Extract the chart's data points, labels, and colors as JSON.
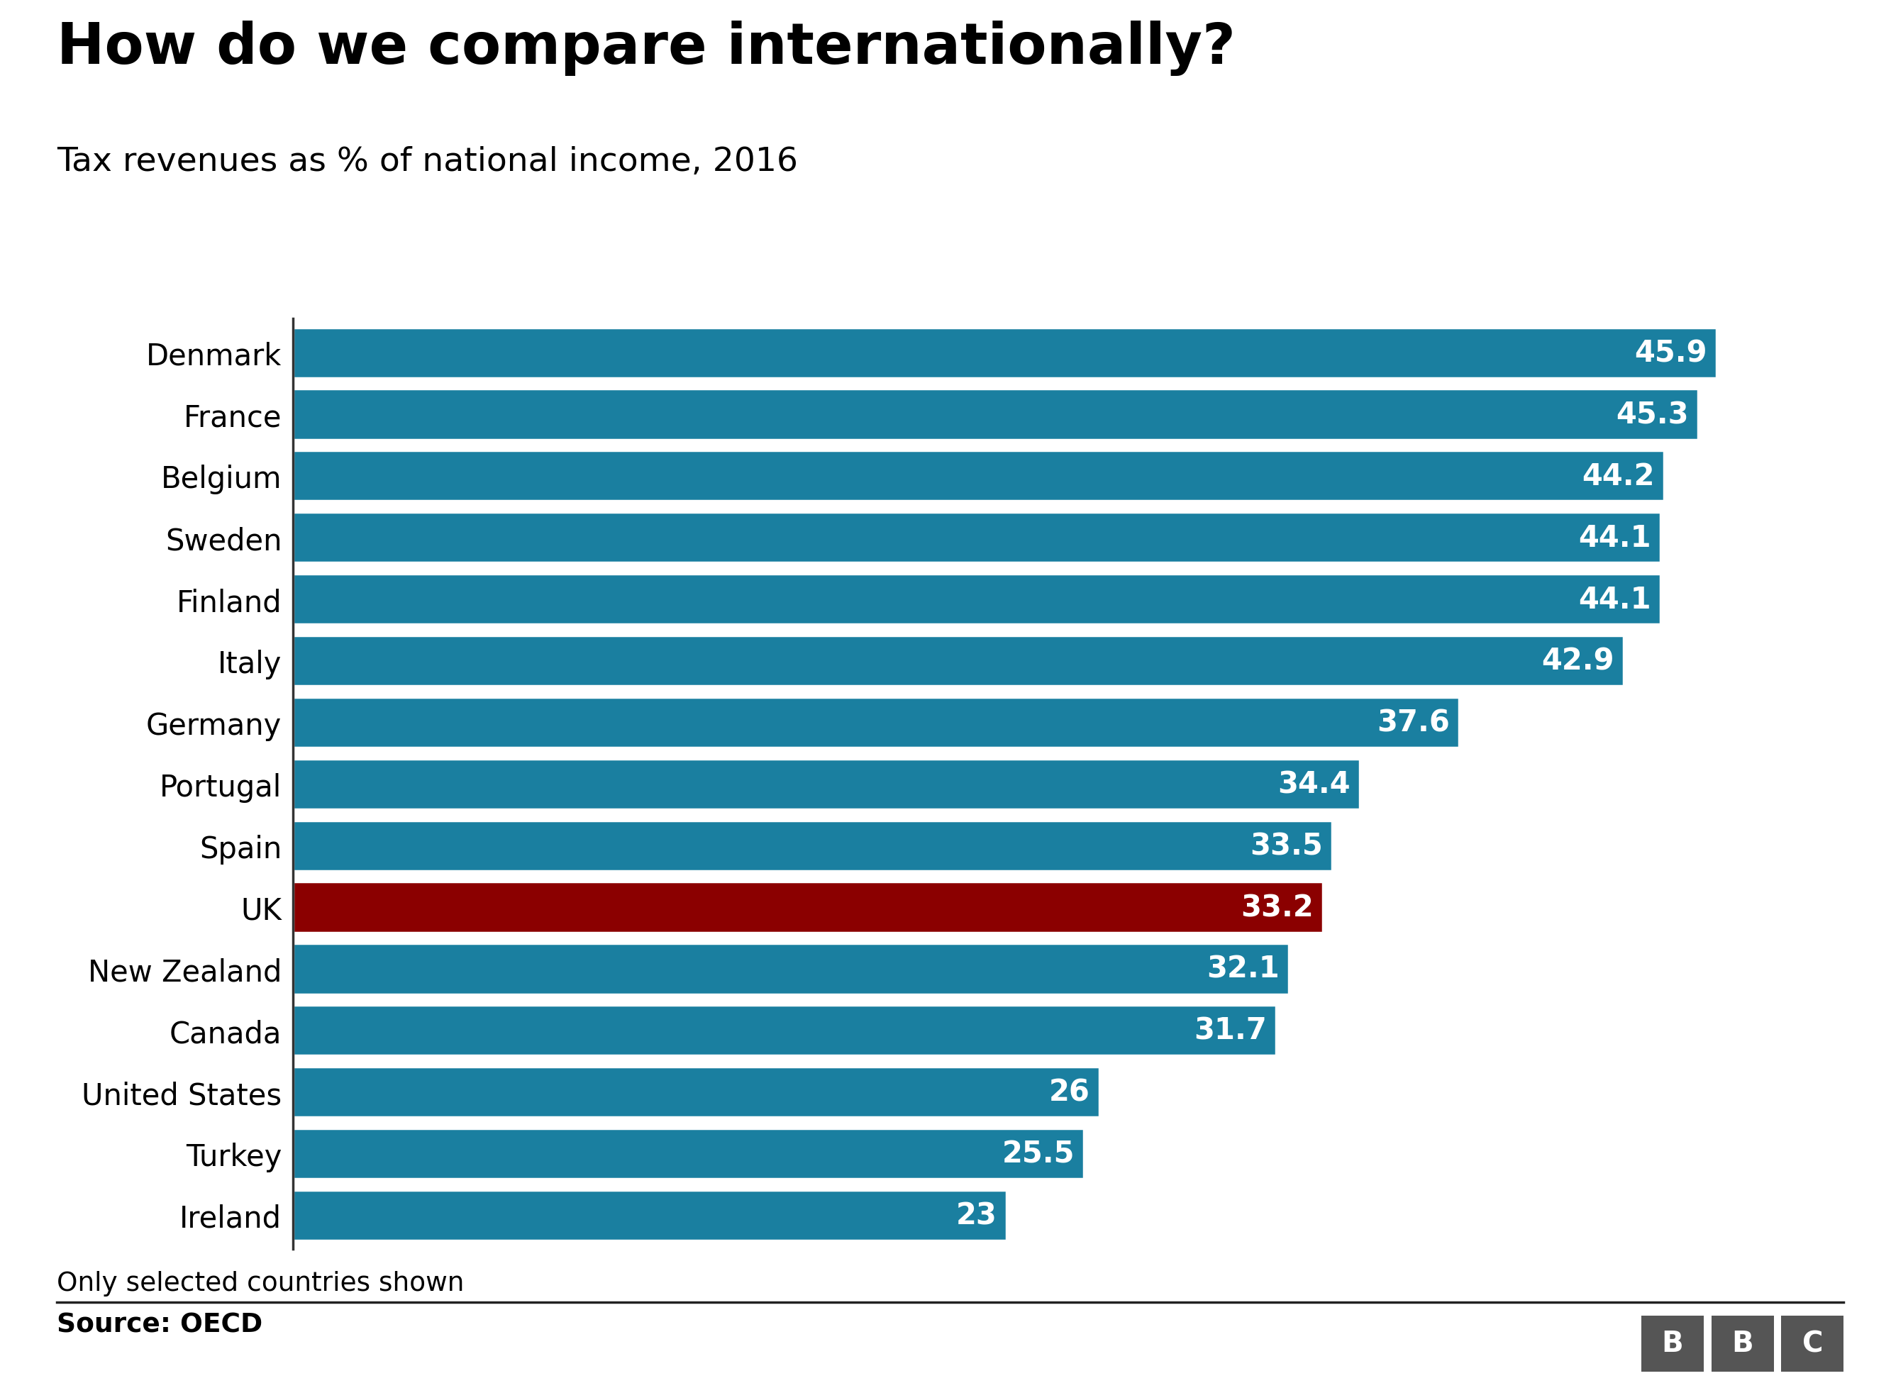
{
  "title": "How do we compare internationally?",
  "subtitle": "Tax revenues as % of national income, 2016",
  "footnote": "Only selected countries shown",
  "source": "Source: OECD",
  "countries": [
    "Denmark",
    "France",
    "Belgium",
    "Sweden",
    "Finland",
    "Italy",
    "Germany",
    "Portugal",
    "Spain",
    "UK",
    "New Zealand",
    "Canada",
    "United States",
    "Turkey",
    "Ireland"
  ],
  "values": [
    45.9,
    45.3,
    44.2,
    44.1,
    44.1,
    42.9,
    37.6,
    34.4,
    33.5,
    33.2,
    32.1,
    31.7,
    26.0,
    25.5,
    23.0
  ],
  "bar_color_default": "#1a7fa0",
  "bar_color_highlight": "#8b0000",
  "highlight_country": "UK",
  "background_color": "#ffffff",
  "title_fontsize": 58,
  "subtitle_fontsize": 34,
  "label_fontsize": 30,
  "value_fontsize": 30,
  "footnote_fontsize": 27,
  "source_fontsize": 27,
  "xlim": [
    0,
    50
  ],
  "text_color": "#000000",
  "bar_text_color": "#ffffff"
}
